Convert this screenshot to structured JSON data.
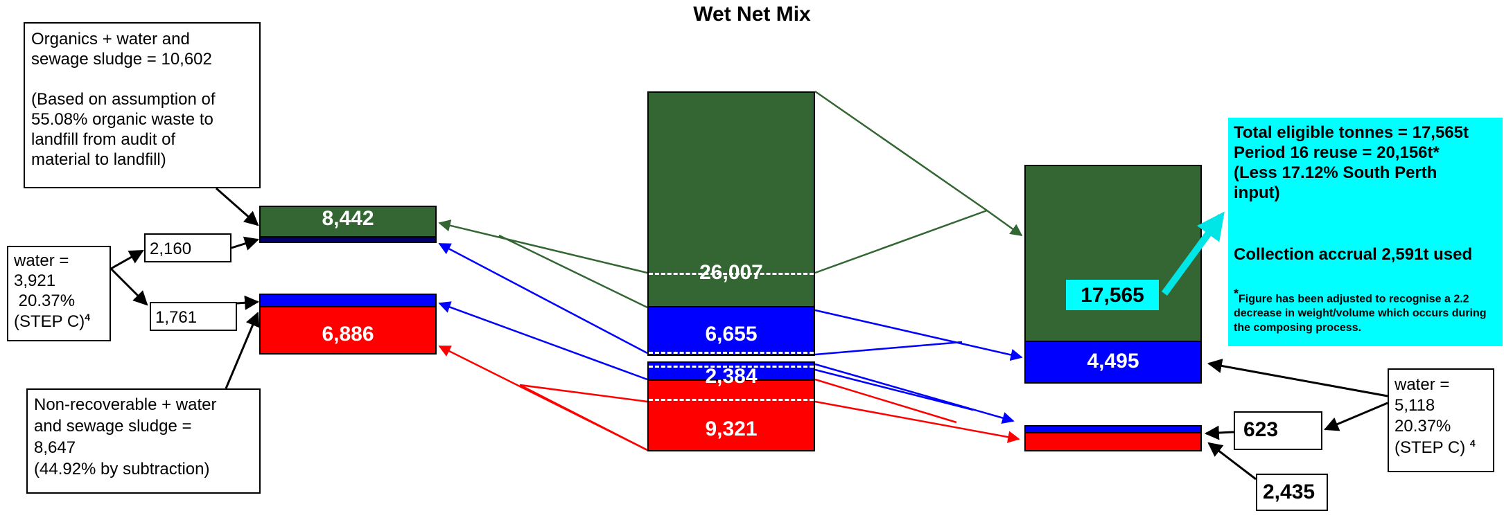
{
  "title": "Wet Net Mix",
  "colors": {
    "organic": "#336633",
    "water": "#0000ff",
    "nonrecoverable": "#ff0000",
    "highlight": "#00ffff"
  },
  "notes": {
    "organics": "Organics + water and\nsewage sludge = 10,602\n\n(Based on assumption of\n55.08% organic waste to\nlandfill from audit of\nmaterial to landfill)",
    "water_left_1": "water =",
    "water_left_2": "3,921",
    "water_left_3": " 20.37%",
    "water_left_4": "(STEP C)",
    "water_left_sup": "4",
    "nonrecoverable": "Non-recoverable + water\nand sewage sludge =\n8,647\n(44.92% by subtraction)",
    "water_right_1": "water =",
    "water_right_2": "5,118",
    "water_right_3": "20.37%",
    "water_right_4": "(STEP C)",
    "water_right_sup": "4"
  },
  "values": {
    "left_water_upper": "2,160",
    "left_water_lower": "1,761",
    "left_green": "8,442",
    "left_red": "6,886",
    "mid_green": "26,007",
    "mid_blue": "6,655",
    "mid_blue2": "2,384",
    "mid_red": "9,321",
    "right_green": "17,565",
    "right_blue": "4,495",
    "right_water_small": "623",
    "right_red_small": "2,435"
  },
  "info_box": {
    "line1": "Total eligible tonnes = 17,565t",
    "line2": "Period 16 reuse = 20,156t*",
    "line3": "(Less 17.12% South Perth",
    "line4": "input)",
    "line5": "Collection accrual 2,591t used",
    "footnote_star": "*",
    "footnote": "Figure has been adjusted to recognise a 2.2 decrease in weight/volume which occurs during the composing process."
  }
}
